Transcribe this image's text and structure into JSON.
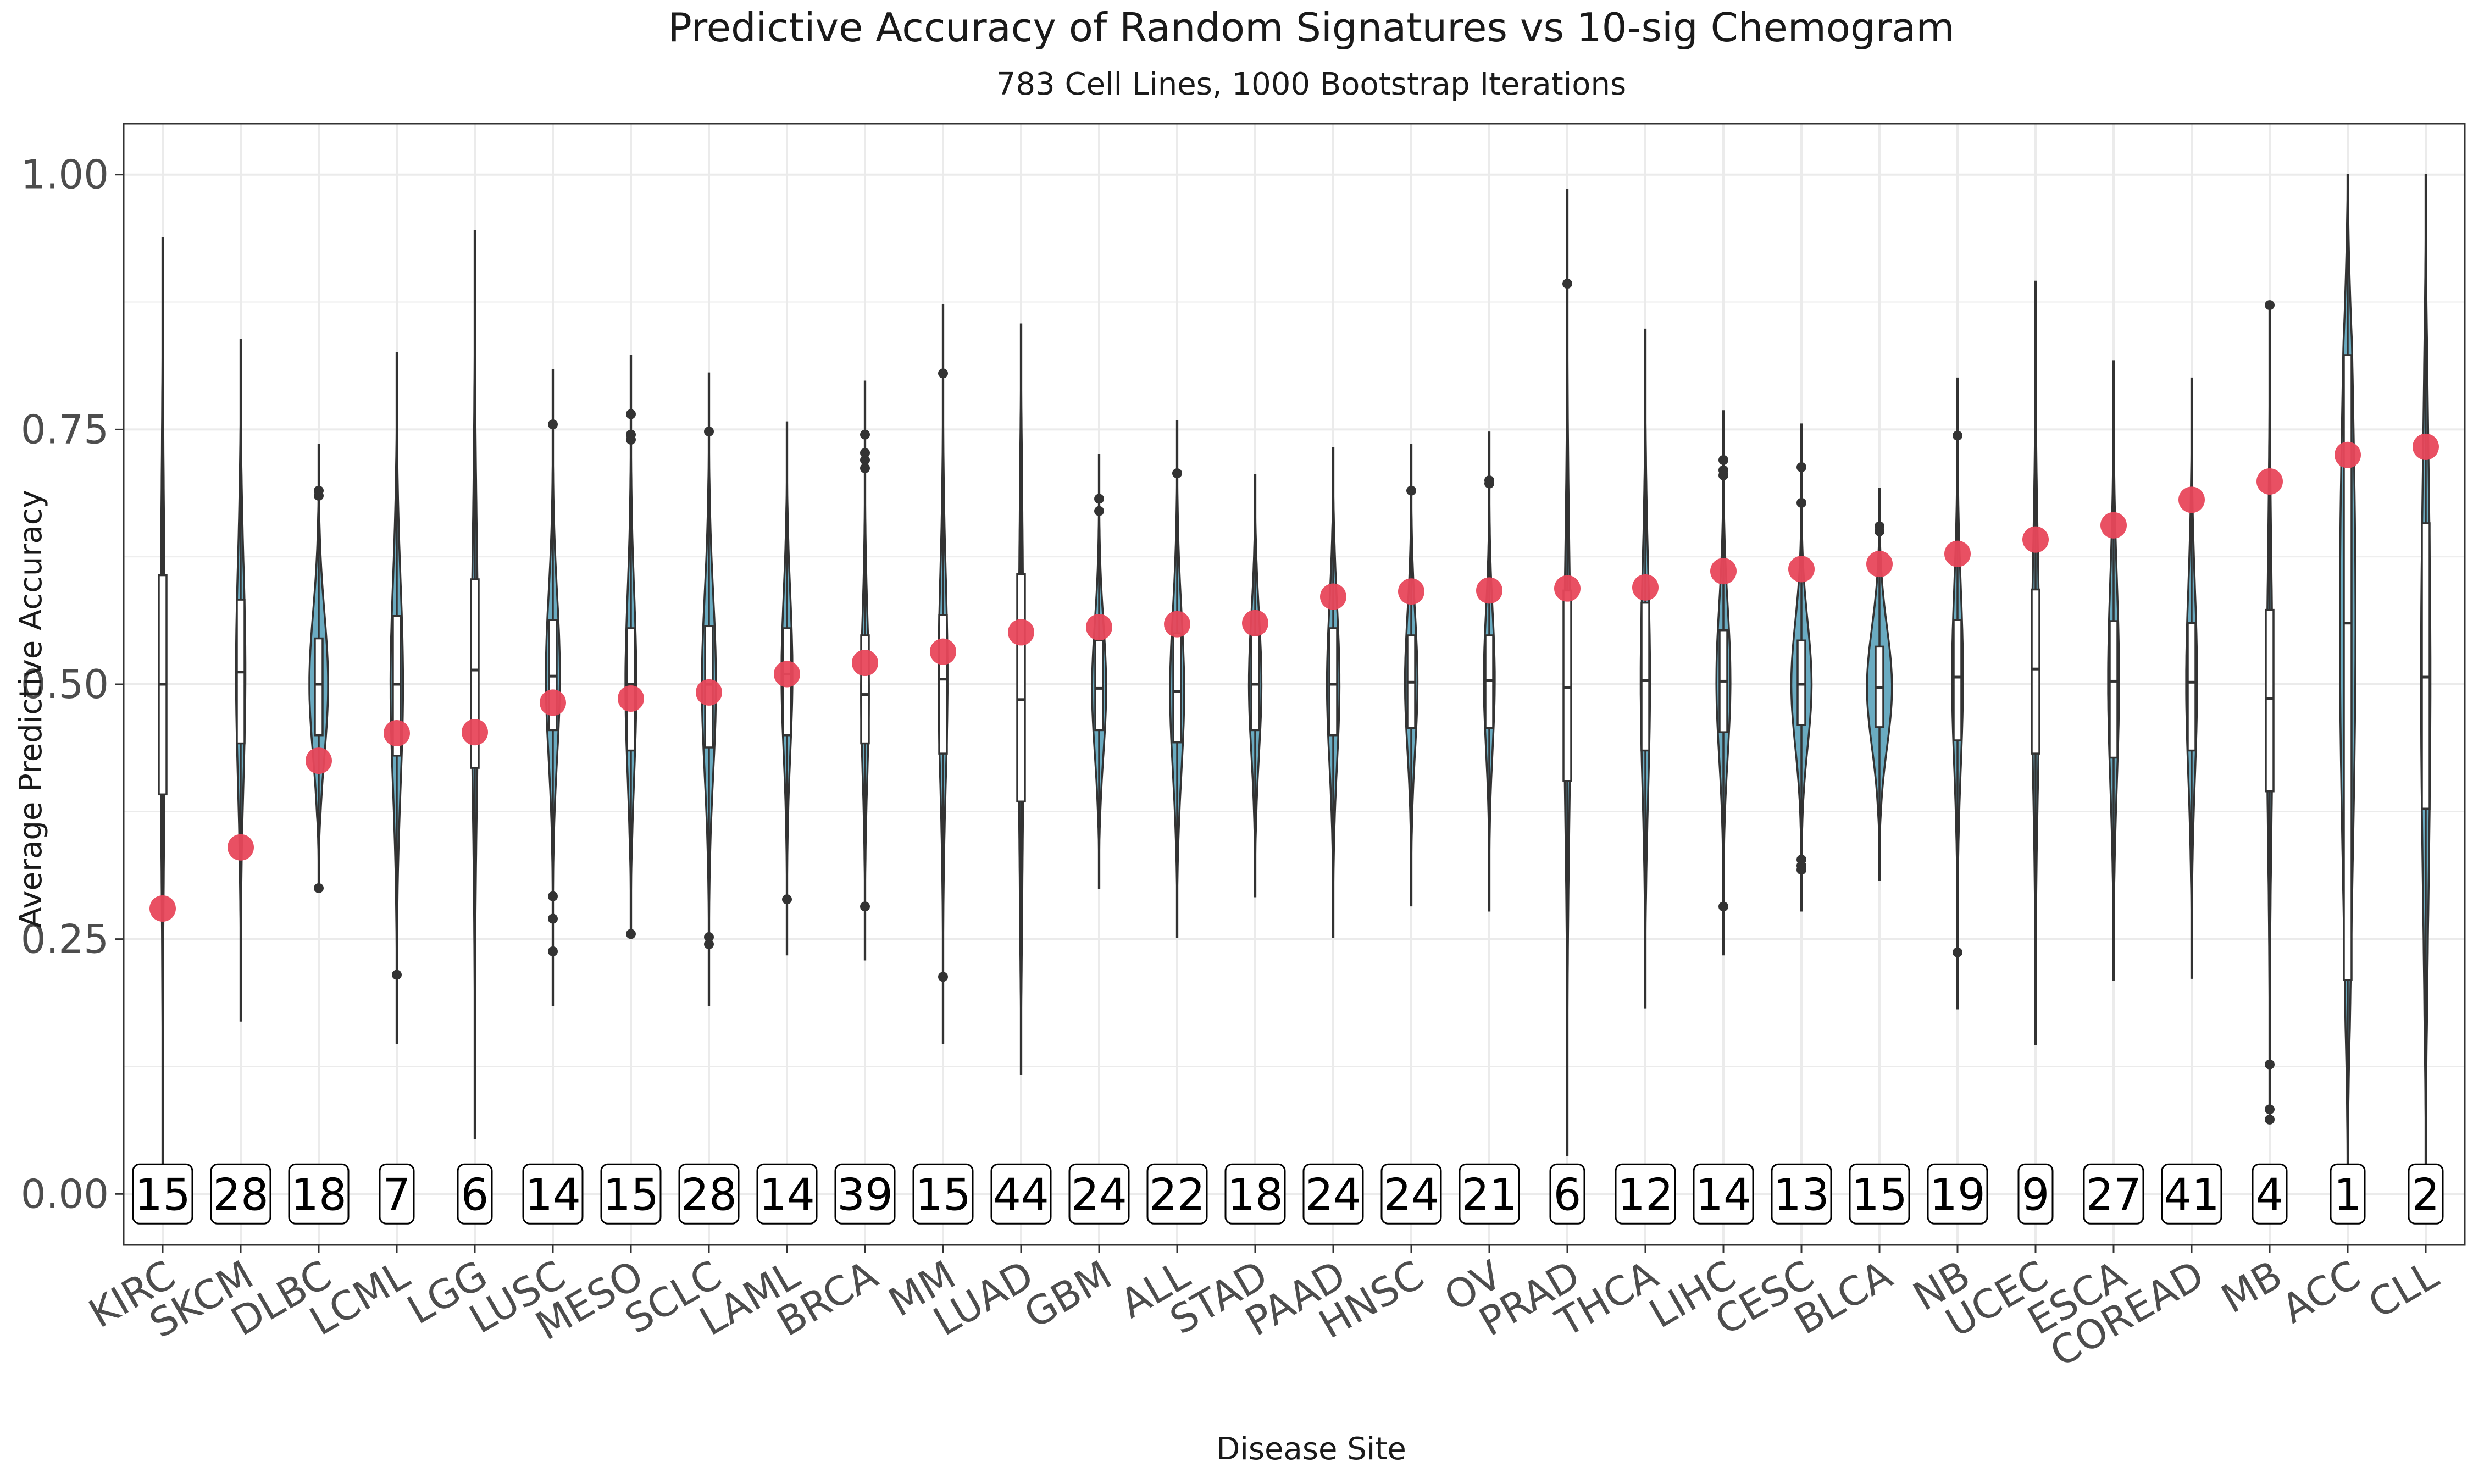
{
  "chart_data": {
    "type": "violin",
    "title": "Predictive Accuracy of Random Signatures vs 10-sig Chemogram",
    "subtitle": "783 Cell Lines, 1000 Bootstrap Iterations",
    "xlabel": "Disease Site",
    "ylabel": "Average Predictive Accuracy",
    "ylim": [
      -0.05,
      1.05
    ],
    "yticks": [
      "0.00",
      "0.25",
      "0.50",
      "0.75",
      "1.00"
    ],
    "grid": true,
    "colors": {
      "violin_fill": "#6aabc1",
      "outline": "#333333",
      "chemogram_point": "#e8475b",
      "grid": "#ebebeb",
      "panel_border": "#333333"
    },
    "categories": [
      "KIRC",
      "SKCM",
      "DLBC",
      "LCML",
      "LGG",
      "LUSC",
      "MESO",
      "SCLC",
      "LAML",
      "BRCA",
      "MM",
      "LUAD",
      "GBM",
      "ALL",
      "STAD",
      "PAAD",
      "HNSC",
      "OV",
      "PRAD",
      "THCA",
      "LIHC",
      "CESC",
      "BLCA",
      "NB",
      "UCEC",
      "ESCA",
      "COREAD",
      "MB",
      "ACC",
      "CLL"
    ],
    "counts": [
      "15",
      "28",
      "18",
      "7",
      "6",
      "14",
      "15",
      "28",
      "14",
      "39",
      "15",
      "44",
      "24",
      "22",
      "18",
      "24",
      "24",
      "21",
      "6",
      "12",
      "14",
      "13",
      "15",
      "19",
      "9",
      "27",
      "41",
      "4",
      "1",
      "2"
    ],
    "chemogram_accuracy": [
      0.28,
      0.34,
      0.425,
      0.452,
      0.453,
      0.482,
      0.486,
      0.492,
      0.51,
      0.521,
      0.532,
      0.551,
      0.556,
      0.559,
      0.56,
      0.586,
      0.591,
      0.592,
      0.594,
      0.595,
      0.611,
      0.613,
      0.618,
      0.628,
      0.642,
      0.656,
      0.681,
      0.699,
      0.725,
      0.733
    ],
    "median": [
      0.5,
      0.512,
      0.5,
      0.5,
      0.514,
      0.508,
      0.5,
      0.5,
      0.51,
      0.49,
      0.505,
      0.485,
      0.496,
      0.493,
      0.5,
      0.5,
      0.502,
      0.504,
      0.497,
      0.504,
      0.503,
      0.5,
      0.497,
      0.507,
      0.515,
      0.503,
      0.502,
      0.486,
      0.56,
      0.507
    ],
    "q1": [
      0.392,
      0.442,
      0.45,
      0.43,
      0.418,
      0.455,
      0.435,
      0.438,
      0.45,
      0.442,
      0.432,
      0.385,
      0.455,
      0.443,
      0.455,
      0.45,
      0.457,
      0.457,
      0.405,
      0.435,
      0.453,
      0.46,
      0.458,
      0.445,
      0.432,
      0.428,
      0.435,
      0.395,
      0.21,
      0.378
    ],
    "q3": [
      0.607,
      0.583,
      0.545,
      0.567,
      0.603,
      0.563,
      0.555,
      0.557,
      0.555,
      0.548,
      0.568,
      0.608,
      0.543,
      0.55,
      0.548,
      0.555,
      0.548,
      0.548,
      0.592,
      0.58,
      0.553,
      0.543,
      0.537,
      0.563,
      0.593,
      0.562,
      0.56,
      0.573,
      0.823,
      0.658
    ],
    "min": [
      0.0,
      0.17,
      0.3,
      0.148,
      0.055,
      0.185,
      0.255,
      0.185,
      0.235,
      0.23,
      0.148,
      0.118,
      0.3,
      0.252,
      0.292,
      0.252,
      0.283,
      0.278,
      0.038,
      0.183,
      0.235,
      0.278,
      0.308,
      0.182,
      0.147,
      0.21,
      0.212,
      0.073,
      0.0,
      0.0
    ],
    "max": [
      0.938,
      0.838,
      0.735,
      0.825,
      0.945,
      0.808,
      0.822,
      0.805,
      0.757,
      0.797,
      0.872,
      0.853,
      0.725,
      0.758,
      0.705,
      0.732,
      0.735,
      0.747,
      0.985,
      0.848,
      0.768,
      0.755,
      0.692,
      0.8,
      0.895,
      0.817,
      0.8,
      0.873,
      1.0,
      1.0
    ],
    "max_half_width": [
      0.028,
      0.06,
      0.12,
      0.08,
      0.04,
      0.09,
      0.07,
      0.09,
      0.07,
      0.05,
      0.058,
      0.03,
      0.09,
      0.09,
      0.08,
      0.08,
      0.08,
      0.07,
      0.04,
      0.06,
      0.09,
      0.13,
      0.16,
      0.07,
      0.048,
      0.07,
      0.07,
      0.036,
      0.1,
      0.06
    ],
    "outliers": [
      [],
      [],
      [
        0.3,
        0.685,
        0.69
      ],
      [
        0.215
      ],
      [],
      [
        0.238,
        0.27,
        0.292,
        0.755
      ],
      [
        0.255,
        0.74,
        0.745,
        0.765
      ],
      [
        0.245,
        0.252,
        0.748
      ],
      [
        0.289
      ],
      [
        0.282,
        0.712,
        0.72,
        0.727,
        0.745
      ],
      [
        0.213,
        0.805
      ],
      [],
      [
        0.67,
        0.682
      ],
      [
        0.707
      ],
      [],
      [],
      [
        0.69
      ],
      [
        0.697,
        0.7
      ],
      [
        0.893
      ],
      [],
      [
        0.282,
        0.705,
        0.71,
        0.72
      ],
      [
        0.318,
        0.322,
        0.328,
        0.678,
        0.713
      ],
      [
        0.65,
        0.655
      ],
      [
        0.237,
        0.744
      ],
      [],
      [],
      [],
      [
        0.073,
        0.083,
        0.127,
        0.872
      ],
      [],
      []
    ]
  }
}
